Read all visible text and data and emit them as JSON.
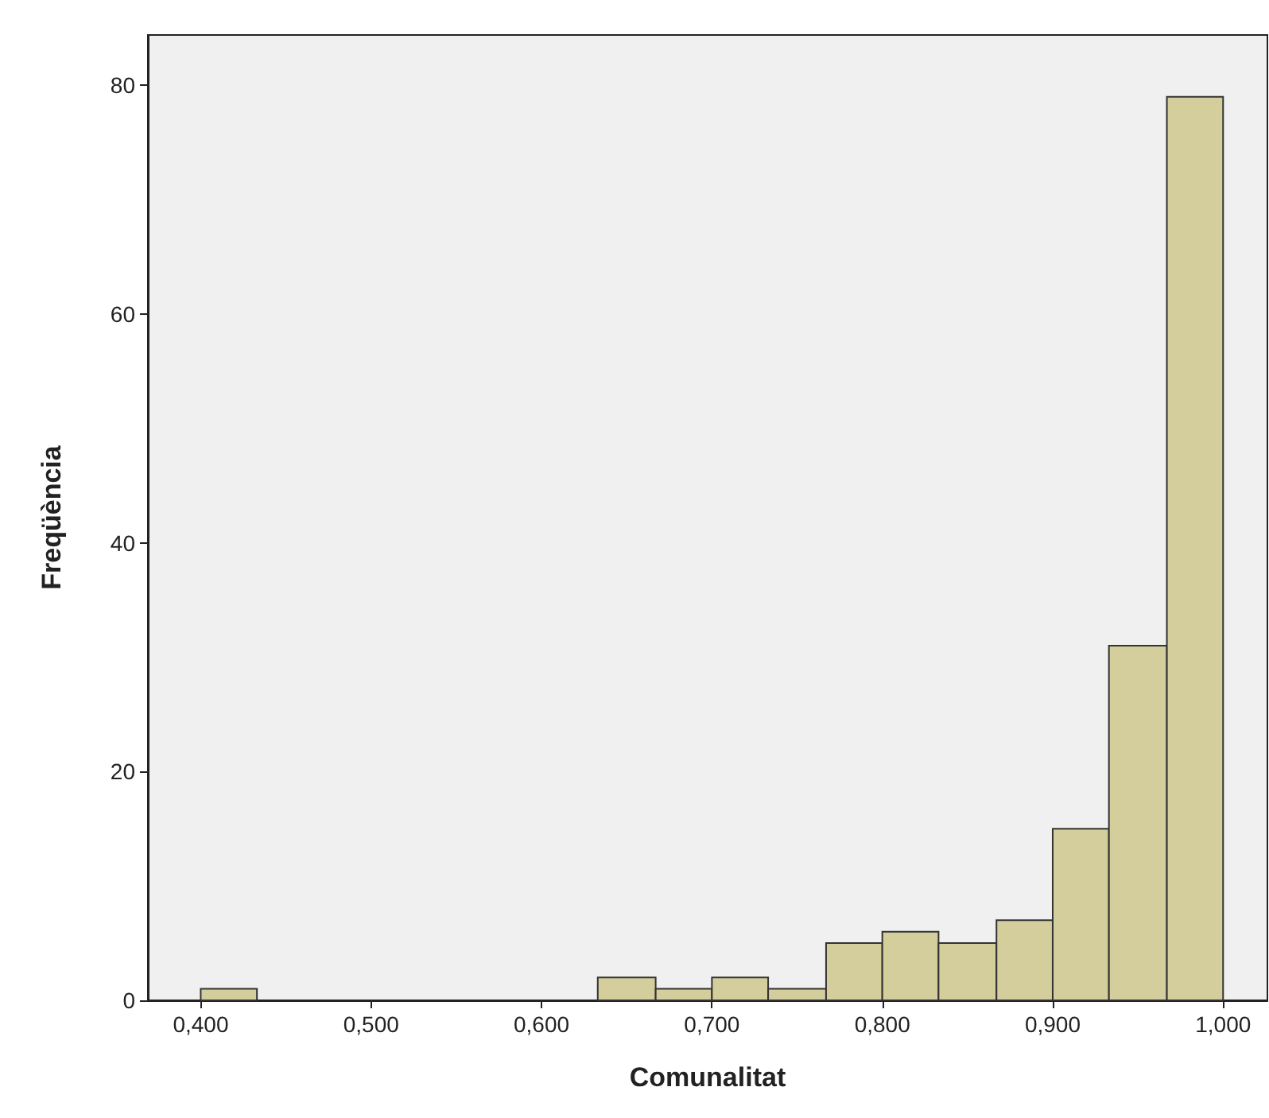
{
  "chart_data": {
    "type": "histogram",
    "xlabel": "Comunalitat",
    "ylabel": "Freqüència",
    "bins": [
      0.4,
      0.433,
      0.633,
      0.667,
      0.7,
      0.733,
      0.767,
      0.8,
      0.833,
      0.867,
      0.9,
      0.933,
      0.967,
      1.0
    ],
    "values": [
      1,
      0,
      2,
      1,
      2,
      1,
      5,
      6,
      5,
      7,
      15,
      31,
      79
    ],
    "color": "#d3ce9b",
    "xlim": [
      0.369,
      1.026
    ],
    "xticks": [
      {
        "value": 0.4,
        "label": "0,400"
      },
      {
        "value": 0.5,
        "label": "0,500"
      },
      {
        "value": 0.6,
        "label": "0,600"
      },
      {
        "value": 0.7,
        "label": "0,700"
      },
      {
        "value": 0.8,
        "label": "0,800"
      },
      {
        "value": 0.9,
        "label": "0,900"
      },
      {
        "value": 1.0,
        "label": "1,000"
      }
    ],
    "ylim": [
      0,
      84.4
    ],
    "yticks": [
      0,
      20,
      40,
      60,
      80
    ],
    "grid": false
  }
}
